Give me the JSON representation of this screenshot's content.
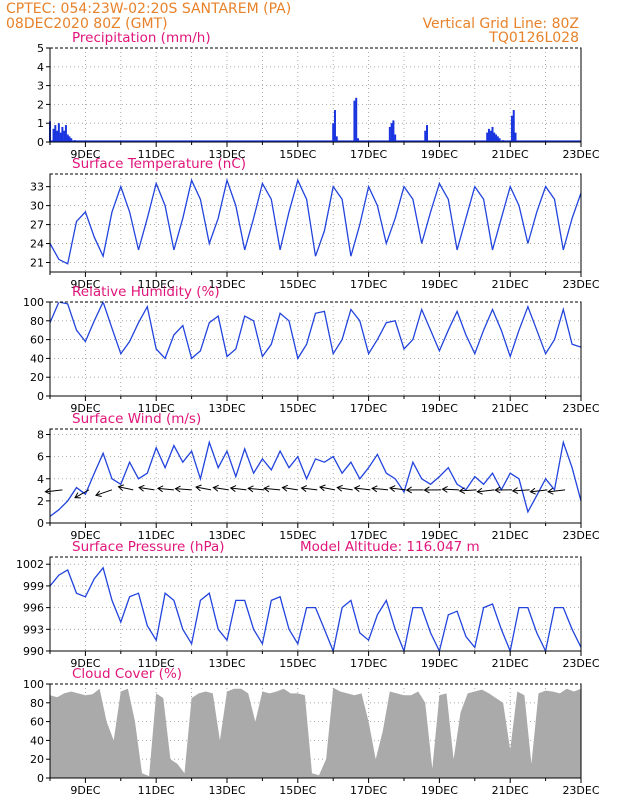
{
  "header": {
    "line1_left": "CPTEC:   054:23W-02:20S   SANTAREM (PA)",
    "line2_left": "08DEC2020 80Z (GMT)",
    "line2_right": "Vertical Grid Line: 80Z",
    "line3_right": "TQ0126L028"
  },
  "colors": {
    "line": "#2244dd",
    "bar": "#1a35e0",
    "cloud": "#aaaaaa",
    "title": "#e0157a",
    "header": "#e8822a"
  },
  "chart_data": [
    {
      "type": "bar",
      "title": "Precipitation (mm/h)",
      "ylim": [
        0,
        5
      ],
      "yticks": [
        0,
        1,
        2,
        3,
        4,
        5
      ],
      "xlabels": [
        "9DEC",
        "11DEC",
        "13DEC",
        "15DEC",
        "17DEC",
        "19DEC",
        "21DEC",
        "23DEC"
      ],
      "grid": true,
      "x_days": [
        0.0,
        0.1,
        0.15,
        0.2,
        0.25,
        0.3,
        0.35,
        0.4,
        0.45,
        0.5,
        0.55,
        0.6,
        0.7,
        0.8,
        8.0,
        8.05,
        8.1,
        8.6,
        8.65,
        8.7,
        9.6,
        9.65,
        9.7,
        9.75,
        10.6,
        10.65,
        12.35,
        12.4,
        12.45,
        12.5,
        12.55,
        12.6,
        12.65,
        12.7,
        12.8,
        13.05,
        13.1,
        13.15
      ],
      "values": [
        1.1,
        0.7,
        0.9,
        0.6,
        1.0,
        0.5,
        0.8,
        0.6,
        0.9,
        0.4,
        0.3,
        0.2,
        0.1,
        0.05,
        1.0,
        1.7,
        0.3,
        2.2,
        2.35,
        0.2,
        0.8,
        1.0,
        1.15,
        0.4,
        0.6,
        0.9,
        0.5,
        0.7,
        0.6,
        0.8,
        0.5,
        0.4,
        0.3,
        0.2,
        0.1,
        1.4,
        1.7,
        0.5
      ]
    },
    {
      "type": "line",
      "title": "Surface Temperature (nC)",
      "ylim": [
        19.5,
        35
      ],
      "yticks": [
        21,
        24,
        27,
        30,
        33
      ],
      "xlabels": [
        "9DEC",
        "11DEC",
        "13DEC",
        "15DEC",
        "17DEC",
        "19DEC",
        "21DEC",
        "23DEC"
      ],
      "grid": true,
      "x_days": [
        0,
        0.25,
        0.5,
        0.75,
        1.0,
        1.25,
        1.5,
        1.75,
        2.0,
        2.25,
        2.5,
        2.75,
        3.0,
        3.25,
        3.5,
        3.75,
        4.0,
        4.25,
        4.5,
        4.75,
        5.0,
        5.25,
        5.5,
        5.75,
        6.0,
        6.25,
        6.5,
        6.75,
        7.0,
        7.25,
        7.5,
        7.75,
        8.0,
        8.25,
        8.5,
        8.75,
        9.0,
        9.25,
        9.5,
        9.75,
        10.0,
        10.25,
        10.5,
        10.75,
        11.0,
        11.25,
        11.5,
        11.75,
        12.0,
        12.25,
        12.5,
        12.75,
        13.0,
        13.25,
        13.5,
        13.75,
        14.0,
        14.25,
        14.5,
        14.75,
        15.0
      ],
      "values": [
        24,
        21.5,
        20.8,
        27.5,
        29,
        25,
        22,
        29,
        33,
        29,
        23,
        28,
        33.5,
        30,
        23,
        28,
        34,
        31,
        24,
        28,
        34,
        30,
        23,
        28,
        33.5,
        31,
        23,
        29,
        34,
        31,
        22,
        26,
        33,
        31,
        22,
        27,
        33,
        30,
        24,
        28,
        33,
        31,
        24,
        29,
        33.5,
        31,
        23,
        28,
        33,
        31,
        23,
        28,
        33,
        30,
        24,
        29,
        33,
        31,
        23,
        28,
        32
      ]
    },
    {
      "type": "line",
      "title": "Relative Humidity (%)",
      "ylim": [
        0,
        100
      ],
      "yticks": [
        0,
        20,
        40,
        60,
        80,
        100
      ],
      "xlabels": [
        "9DEC",
        "11DEC",
        "13DEC",
        "15DEC",
        "17DEC",
        "19DEC",
        "21DEC",
        "23DEC"
      ],
      "grid": true,
      "x_days": [
        0,
        0.25,
        0.5,
        0.75,
        1.0,
        1.25,
        1.5,
        1.75,
        2.0,
        2.25,
        2.5,
        2.75,
        3.0,
        3.25,
        3.5,
        3.75,
        4.0,
        4.25,
        4.5,
        4.75,
        5.0,
        5.25,
        5.5,
        5.75,
        6.0,
        6.25,
        6.5,
        6.75,
        7.0,
        7.25,
        7.5,
        7.75,
        8.0,
        8.25,
        8.5,
        8.75,
        9.0,
        9.25,
        9.5,
        9.75,
        10.0,
        10.25,
        10.5,
        10.75,
        11.0,
        11.25,
        11.5,
        11.75,
        12.0,
        12.25,
        12.5,
        12.75,
        13.0,
        13.25,
        13.5,
        13.75,
        14.0,
        14.25,
        14.5,
        14.75,
        15.0
      ],
      "values": [
        78,
        100,
        98,
        70,
        58,
        80,
        100,
        72,
        45,
        58,
        78,
        95,
        50,
        40,
        65,
        75,
        40,
        48,
        78,
        85,
        42,
        50,
        85,
        80,
        42,
        55,
        88,
        80,
        40,
        55,
        88,
        90,
        45,
        60,
        92,
        80,
        45,
        60,
        78,
        80,
        50,
        60,
        92,
        70,
        48,
        70,
        90,
        65,
        45,
        70,
        92,
        70,
        42,
        70,
        95,
        70,
        45,
        60,
        92,
        55,
        52
      ]
    },
    {
      "type": "line",
      "title": "Surface Wind (m/s)",
      "ylim": [
        0,
        8.5
      ],
      "yticks": [
        0,
        2,
        4,
        6,
        8
      ],
      "xlabels": [
        "9DEC",
        "11DEC",
        "13DEC",
        "15DEC",
        "17DEC",
        "19DEC",
        "21DEC",
        "23DEC"
      ],
      "grid": true,
      "x_days": [
        0,
        0.25,
        0.5,
        0.75,
        1.0,
        1.25,
        1.5,
        1.75,
        2.0,
        2.25,
        2.5,
        2.75,
        3.0,
        3.25,
        3.5,
        3.75,
        4.0,
        4.25,
        4.5,
        4.75,
        5.0,
        5.25,
        5.5,
        5.75,
        6.0,
        6.25,
        6.5,
        6.75,
        7.0,
        7.25,
        7.5,
        7.75,
        8.0,
        8.25,
        8.5,
        8.75,
        9.0,
        9.25,
        9.5,
        9.75,
        10.0,
        10.25,
        10.5,
        10.75,
        11.0,
        11.25,
        11.5,
        11.75,
        12.0,
        12.25,
        12.5,
        12.75,
        13.0,
        13.25,
        13.5,
        13.75,
        14.0,
        14.25,
        14.5,
        14.75,
        15.0
      ],
      "values": [
        0.6,
        1.2,
        2.0,
        3.2,
        2.6,
        4.5,
        6.3,
        4.0,
        3.5,
        5.5,
        4.0,
        4.5,
        6.8,
        5.0,
        7.0,
        5.5,
        6.5,
        4.0,
        7.3,
        5.0,
        6.5,
        4.2,
        6.7,
        4.5,
        5.8,
        4.8,
        6.5,
        5.0,
        6.0,
        4.0,
        5.8,
        5.5,
        6.0,
        4.5,
        5.5,
        4.0,
        5.0,
        6.2,
        4.5,
        4.0,
        2.8,
        5.5,
        4.0,
        3.5,
        4.2,
        5.0,
        3.5,
        3.0,
        4.2,
        3.5,
        4.5,
        3.0,
        4.5,
        4.0,
        1.0,
        2.5,
        4.0,
        3.0,
        7.3,
        5.0,
        2.0
      ],
      "vectors_x_days": [
        0.35,
        1.1,
        1.75,
        2.35,
        2.95,
        3.5,
        4.0,
        4.55,
        5.05,
        5.55,
        6.05,
        6.5,
        7.0,
        7.55,
        8.05,
        8.55,
        9.05,
        9.55,
        10.05,
        10.55,
        11.05,
        11.55,
        12.05,
        12.55,
        13.05,
        13.55,
        14.05,
        14.55
      ],
      "vectors_dir_deg": [
        90,
        55,
        70,
        120,
        115,
        110,
        108,
        118,
        115,
        112,
        110,
        110,
        115,
        112,
        118,
        115,
        112,
        110,
        112,
        100,
        100,
        105,
        95,
        90,
        100,
        95,
        90,
        90
      ]
    },
    {
      "type": "line",
      "title": "Surface Pressure (hPa)",
      "annotation": "Model Altitude: 116.047 m",
      "ylim": [
        990,
        1003
      ],
      "yticks": [
        990,
        993,
        996,
        999,
        1002
      ],
      "xlabels": [
        "9DEC",
        "11DEC",
        "13DEC",
        "15DEC",
        "17DEC",
        "19DEC",
        "21DEC",
        "23DEC"
      ],
      "grid": true,
      "x_days": [
        0,
        0.25,
        0.5,
        0.75,
        1.0,
        1.25,
        1.5,
        1.75,
        2.0,
        2.25,
        2.5,
        2.75,
        3.0,
        3.25,
        3.5,
        3.75,
        4.0,
        4.25,
        4.5,
        4.75,
        5.0,
        5.25,
        5.5,
        5.75,
        6.0,
        6.25,
        6.5,
        6.75,
        7.0,
        7.25,
        7.5,
        7.75,
        8.0,
        8.25,
        8.5,
        8.75,
        9.0,
        9.25,
        9.5,
        9.75,
        10.0,
        10.25,
        10.5,
        10.75,
        11.0,
        11.25,
        11.5,
        11.75,
        12.0,
        12.25,
        12.5,
        12.75,
        13.0,
        13.25,
        13.5,
        13.75,
        14.0,
        14.25,
        14.5,
        14.75,
        15.0
      ],
      "values": [
        999,
        1000.5,
        1001.2,
        998,
        997.5,
        1000,
        1001.5,
        997,
        994,
        997.5,
        998,
        993.5,
        991.5,
        998,
        997,
        993,
        991,
        997,
        998,
        993,
        991.5,
        997,
        997,
        993,
        991,
        997,
        997.5,
        993,
        991,
        996,
        996,
        993,
        990,
        996,
        997,
        992.5,
        991.5,
        995,
        997,
        993,
        990,
        996,
        996,
        992.5,
        990,
        995,
        995.5,
        992,
        990.5,
        996,
        996.5,
        993,
        990,
        996,
        996,
        992.5,
        990,
        996,
        996,
        993,
        990.5
      ]
    },
    {
      "type": "area",
      "title": "Cloud Cover (%)",
      "ylim": [
        0,
        100
      ],
      "yticks": [
        0,
        20,
        40,
        60,
        80,
        100
      ],
      "xlabels": [
        "9DEC",
        "11DEC",
        "13DEC",
        "15DEC",
        "17DEC",
        "19DEC",
        "21DEC",
        "23DEC"
      ],
      "grid": true,
      "x_days": [
        0,
        0.2,
        0.4,
        0.6,
        0.8,
        1.0,
        1.2,
        1.4,
        1.6,
        1.8,
        2.0,
        2.2,
        2.4,
        2.6,
        2.8,
        3.0,
        3.2,
        3.4,
        3.6,
        3.8,
        4.0,
        4.2,
        4.4,
        4.6,
        4.8,
        5.0,
        5.2,
        5.4,
        5.6,
        5.8,
        6.0,
        6.2,
        6.4,
        6.6,
        6.8,
        7.0,
        7.2,
        7.4,
        7.6,
        7.8,
        8.0,
        8.2,
        8.4,
        8.6,
        8.8,
        9.0,
        9.2,
        9.4,
        9.6,
        9.8,
        10.0,
        10.2,
        10.4,
        10.6,
        10.8,
        11.0,
        11.2,
        11.4,
        11.6,
        11.8,
        12.0,
        12.2,
        12.4,
        12.6,
        12.8,
        13.0,
        13.2,
        13.4,
        13.6,
        13.8,
        14.0,
        14.2,
        14.4,
        14.6,
        14.8,
        15.0
      ],
      "values": [
        88,
        86,
        90,
        92,
        90,
        88,
        89,
        95,
        60,
        40,
        92,
        95,
        60,
        5,
        2,
        90,
        85,
        20,
        15,
        5,
        85,
        90,
        92,
        90,
        40,
        92,
        95,
        95,
        90,
        60,
        92,
        90,
        92,
        95,
        90,
        90,
        88,
        5,
        3,
        20,
        96,
        92,
        90,
        88,
        90,
        60,
        20,
        50,
        92,
        90,
        88,
        88,
        92,
        80,
        10,
        88,
        90,
        20,
        70,
        90,
        92,
        94,
        90,
        85,
        80,
        30,
        92,
        88,
        15,
        90,
        93,
        92,
        90,
        95,
        92,
        95
      ]
    }
  ]
}
